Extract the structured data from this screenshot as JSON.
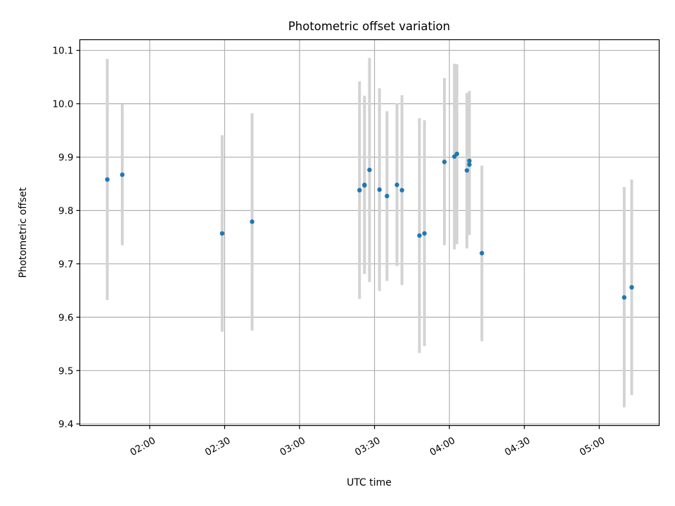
{
  "chart_data": {
    "type": "scatter",
    "title": "Photometric offset variation",
    "xlabel": "UTC time",
    "ylabel": "Photometric offset",
    "x_axis_type": "time",
    "xlim": [
      "01:32",
      "05:24"
    ],
    "ylim": [
      9.397,
      10.12
    ],
    "grid": true,
    "x_ticks": [
      "02:00",
      "02:30",
      "03:00",
      "03:30",
      "04:00",
      "04:30",
      "05:00"
    ],
    "y_ticks": [
      "9.4",
      "9.5",
      "9.6",
      "9.7",
      "9.8",
      "9.9",
      "10.0",
      "10.1"
    ],
    "marker_color": "#1f77b4",
    "errorbar_color": "#d3d3d3",
    "series": [
      {
        "points": [
          {
            "x": "01:43",
            "y": 9.858,
            "ylow": 9.632,
            "yhigh": 10.084
          },
          {
            "x": "01:49",
            "y": 9.867,
            "ylow": 9.735,
            "yhigh": 9.999
          },
          {
            "x": "02:29",
            "y": 9.757,
            "ylow": 9.573,
            "yhigh": 9.941
          },
          {
            "x": "02:41",
            "y": 9.779,
            "ylow": 9.575,
            "yhigh": 9.982
          },
          {
            "x": "03:24",
            "y": 9.838,
            "ylow": 9.634,
            "yhigh": 10.042
          },
          {
            "x": "03:26",
            "y": 9.847,
            "ylow": 9.681,
            "yhigh": 10.015
          },
          {
            "x": "03:26",
            "y": 9.848,
            "ylow": 9.682,
            "yhigh": 10.014
          },
          {
            "x": "03:28",
            "y": 9.876,
            "ylow": 9.666,
            "yhigh": 10.086
          },
          {
            "x": "03:32",
            "y": 9.839,
            "ylow": 9.649,
            "yhigh": 10.029
          },
          {
            "x": "03:35",
            "y": 9.827,
            "ylow": 9.668,
            "yhigh": 9.986
          },
          {
            "x": "03:39",
            "y": 9.848,
            "ylow": 9.696,
            "yhigh": 10.001
          },
          {
            "x": "03:41",
            "y": 9.838,
            "ylow": 9.66,
            "yhigh": 10.016
          },
          {
            "x": "03:48",
            "y": 9.753,
            "ylow": 9.533,
            "yhigh": 9.973
          },
          {
            "x": "03:50",
            "y": 9.757,
            "ylow": 9.546,
            "yhigh": 9.969
          },
          {
            "x": "03:58",
            "y": 9.891,
            "ylow": 9.735,
            "yhigh": 10.048
          },
          {
            "x": "04:02",
            "y": 9.901,
            "ylow": 9.727,
            "yhigh": 10.075
          },
          {
            "x": "04:03",
            "y": 9.906,
            "ylow": 9.737,
            "yhigh": 10.074
          },
          {
            "x": "04:07",
            "y": 9.875,
            "ylow": 9.729,
            "yhigh": 10.02
          },
          {
            "x": "04:08",
            "y": 9.886,
            "ylow": 9.754,
            "yhigh": 10.023
          },
          {
            "x": "04:08",
            "y": 9.893,
            "ylow": 9.762,
            "yhigh": 10.024
          },
          {
            "x": "04:13",
            "y": 9.72,
            "ylow": 9.555,
            "yhigh": 9.884
          },
          {
            "x": "05:10",
            "y": 9.637,
            "ylow": 9.431,
            "yhigh": 9.844
          },
          {
            "x": "05:13",
            "y": 9.656,
            "ylow": 9.454,
            "yhigh": 9.858
          }
        ]
      }
    ]
  }
}
